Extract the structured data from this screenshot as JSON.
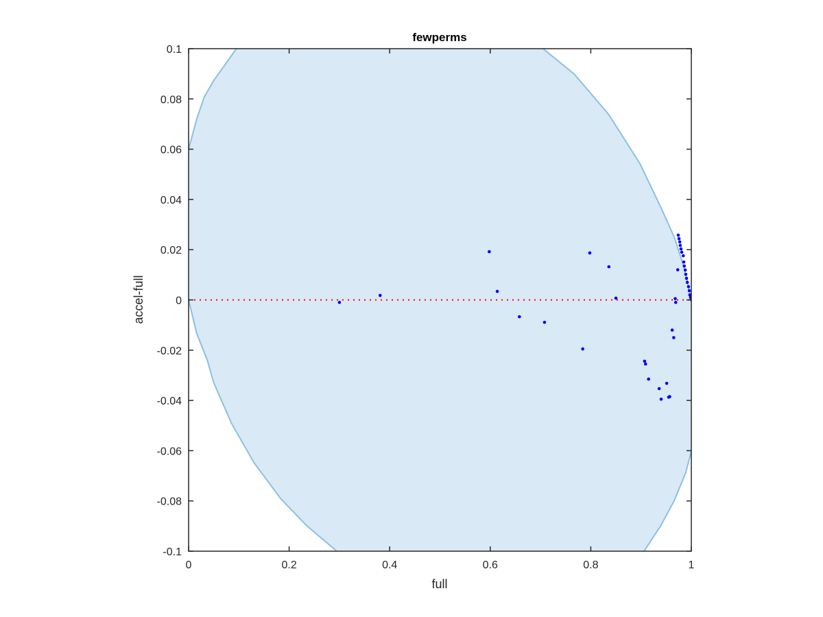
{
  "chart_data": {
    "type": "scatter",
    "title": "fewperms",
    "xlabel": "full",
    "ylabel": "accel-full",
    "xlim": [
      0,
      1
    ],
    "ylim": [
      -0.1,
      0.1
    ],
    "xticks": [
      0,
      0.2,
      0.4,
      0.6,
      0.8,
      1
    ],
    "xtick_labels": [
      "0",
      "0.2",
      "0.4",
      "0.6",
      "0.8",
      "1"
    ],
    "yticks": [
      -0.1,
      -0.08,
      -0.06,
      -0.04,
      -0.02,
      0,
      0.02,
      0.04,
      0.06,
      0.08,
      0.1
    ],
    "ytick_labels": [
      "-0.1",
      "-0.08",
      "-0.06",
      "-0.04",
      "-0.02",
      "0",
      "0.02",
      "0.04",
      "0.06",
      "0.08",
      "0.1"
    ],
    "grid": false,
    "colors": {
      "points": "#0000ff",
      "region_fill": "#d9e9f5",
      "region_edge": "#8cc0e1",
      "reference_line": "#ff0000"
    },
    "reference_line": {
      "y": 0,
      "style": "dotted"
    },
    "region_boundary": {
      "left_upper": [
        [
          0,
          0.06
        ],
        [
          0.016,
          0.0719
        ],
        [
          0.031,
          0.0807
        ],
        [
          0.05,
          0.0873
        ],
        [
          0.071,
          0.0932
        ],
        [
          0.095,
          0.1
        ]
      ],
      "right_upper": [
        [
          0.705,
          0.1
        ],
        [
          0.767,
          0.0899
        ],
        [
          0.835,
          0.074
        ],
        [
          0.898,
          0.0542
        ],
        [
          0.939,
          0.037
        ],
        [
          0.966,
          0.025
        ],
        [
          0.985,
          0.0133
        ],
        [
          1,
          0
        ]
      ],
      "right_lower": [
        [
          1,
          -0.0602
        ],
        [
          0.989,
          -0.0687
        ],
        [
          0.966,
          -0.0799
        ],
        [
          0.939,
          -0.0899
        ],
        [
          0.907,
          -0.0997
        ],
        [
          0.906,
          -0.1
        ]
      ],
      "left_lower": [
        [
          0.293,
          -0.1
        ],
        [
          0.293,
          -0.0997
        ],
        [
          0.235,
          -0.0899
        ],
        [
          0.184,
          -0.0793
        ],
        [
          0.13,
          -0.0648
        ],
        [
          0.085,
          -0.049
        ],
        [
          0.05,
          -0.0329
        ],
        [
          0.037,
          -0.0239
        ],
        [
          0.016,
          -0.0132
        ],
        [
          0,
          0
        ]
      ]
    },
    "points": [
      [
        0.3,
        -0.001
      ],
      [
        0.381,
        0.0018
      ],
      [
        0.598,
        0.0192
      ],
      [
        0.614,
        0.0034
      ],
      [
        0.658,
        -0.0067
      ],
      [
        0.708,
        -0.0089
      ],
      [
        0.784,
        -0.0195
      ],
      [
        0.798,
        0.0187
      ],
      [
        0.836,
        0.0132
      ],
      [
        0.85,
        0.0007
      ],
      [
        0.907,
        -0.0244
      ],
      [
        0.909,
        -0.0255
      ],
      [
        0.915,
        -0.0315
      ],
      [
        0.936,
        -0.0353
      ],
      [
        0.94,
        -0.0395
      ],
      [
        0.951,
        -0.0332
      ],
      [
        0.955,
        -0.0387
      ],
      [
        0.957,
        -0.0385
      ],
      [
        0.962,
        -0.012
      ],
      [
        0.965,
        -0.015
      ],
      [
        0.968,
        0.0005
      ],
      [
        0.969,
        -0.001
      ],
      [
        0.973,
        0.012
      ],
      [
        0.974,
        0.0258
      ],
      [
        0.9755,
        0.0244
      ],
      [
        0.977,
        0.0231
      ],
      [
        0.978,
        0.0217
      ],
      [
        0.9795,
        0.0203
      ],
      [
        0.981,
        0.019
      ],
      [
        0.984,
        0.0176
      ],
      [
        0.985,
        0.0151
      ],
      [
        0.986,
        0.0135
      ],
      [
        0.988,
        0.0119
      ],
      [
        0.989,
        0.0102
      ],
      [
        0.9905,
        0.0086
      ],
      [
        0.992,
        0.007
      ],
      [
        0.9945,
        0.0053
      ],
      [
        0.996,
        0.0037
      ],
      [
        0.997,
        0.002
      ],
      [
        0.9985,
        0.001
      ],
      [
        1.0,
        0.0001
      ]
    ]
  }
}
